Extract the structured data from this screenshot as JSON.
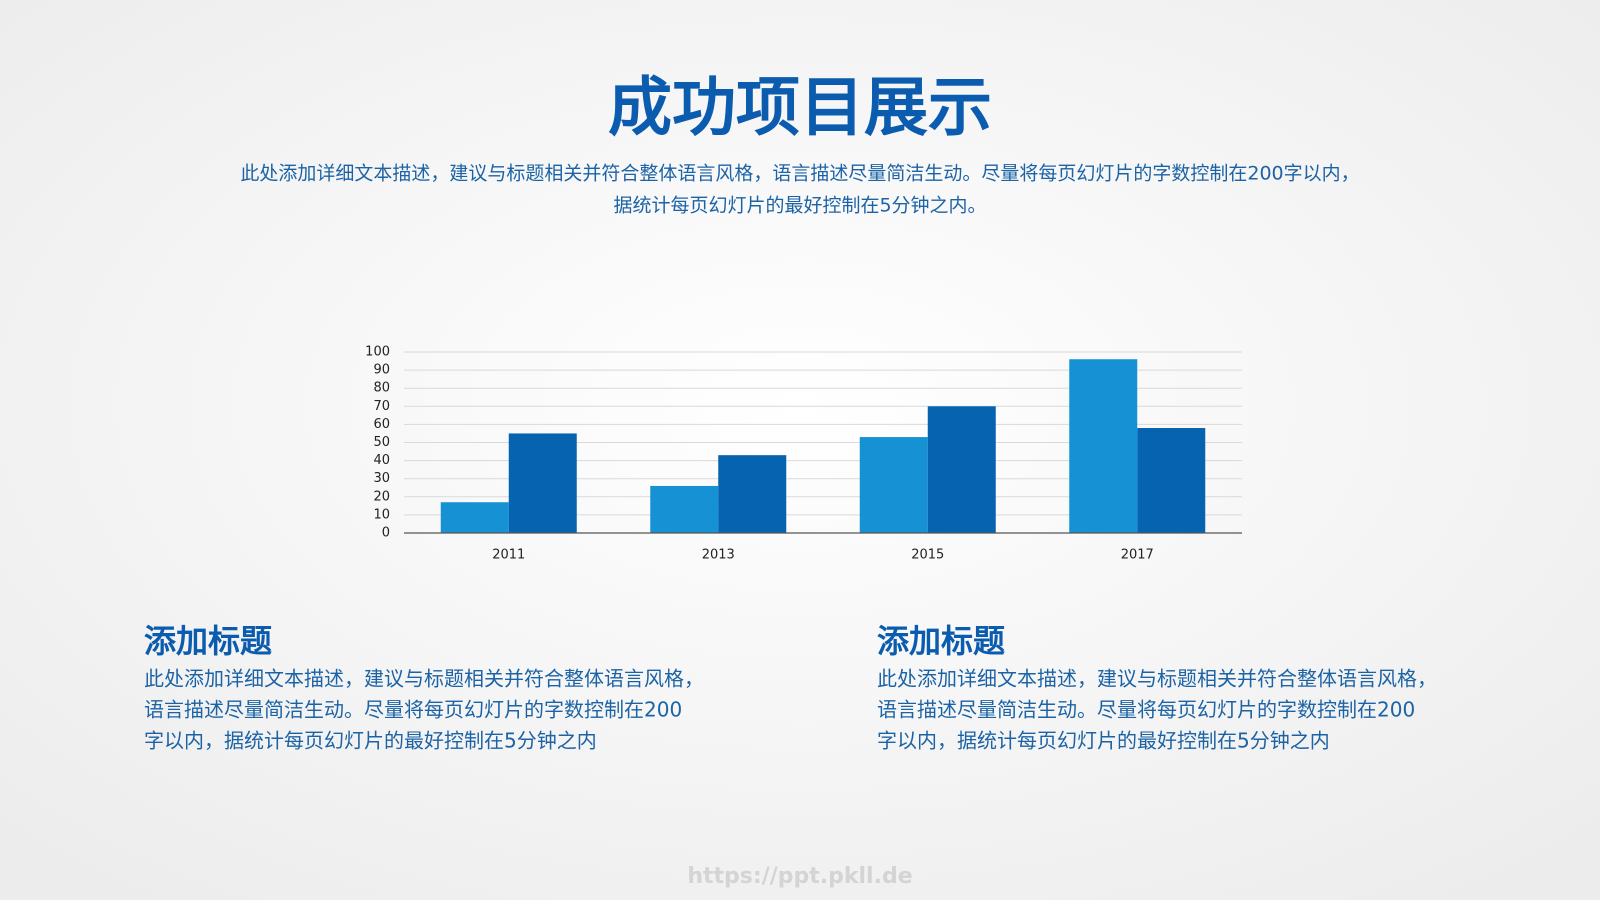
{
  "header": {
    "title": "成功项目展示",
    "subtitle": [
      "此处添加详细文本描述，建议与标题相关并符合整体语言风格，语言描述尽量简洁生动。尽量将每页幻灯片的字数控制在200字以内，",
      "据统计每页幻灯片的最好控制在5分钟之内。"
    ]
  },
  "chart_data": {
    "type": "bar",
    "categories": [
      "2011",
      "2013",
      "2015",
      "2017"
    ],
    "series": [
      {
        "color": "#1591d4",
        "values": [
          17,
          26,
          53,
          96
        ]
      },
      {
        "color": "#0563b0",
        "values": [
          55,
          43,
          70,
          58
        ]
      }
    ],
    "ylim": [
      0,
      100
    ],
    "yticks": [
      0,
      10,
      20,
      30,
      40,
      50,
      60,
      70,
      80,
      90,
      100
    ],
    "grid": true
  },
  "sections": [
    {
      "title": "添加标题",
      "lines": [
        "此处添加详细文本描述，建议与标题相关并符合整体语言风格，",
        "语言描述尽量简洁生动。尽量将每页幻灯片的字数控制在200",
        "字以内，据统计每页幻灯片的最好控制在5分钟之内"
      ]
    },
    {
      "title": "添加标题",
      "lines": [
        "此处添加详细文本描述，建议与标题相关并符合整体语言风格，",
        "语言描述尽量简洁生动。尽量将每页幻灯片的字数控制在200",
        "字以内，据统计每页幻灯片的最好控制在5分钟之内"
      ]
    }
  ],
  "footer": {
    "url": "https://ppt.pkll.de"
  }
}
